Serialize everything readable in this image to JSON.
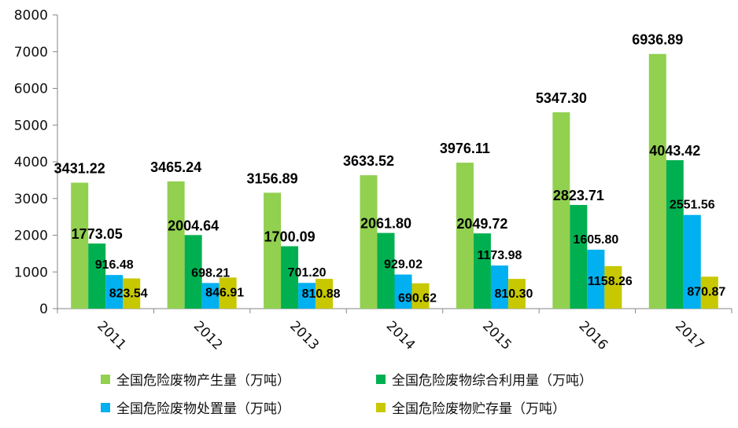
{
  "chart_data": {
    "type": "bar",
    "title": "",
    "xlabel": "",
    "ylabel": "",
    "categories": [
      "2011",
      "2012",
      "2013",
      "2014",
      "2015",
      "2016",
      "2017"
    ],
    "ylim": [
      0,
      8000
    ],
    "yticks": [
      "0",
      "1000",
      "2000",
      "3000",
      "4000",
      "5000",
      "6000",
      "7000",
      "8000"
    ],
    "grid": false,
    "legend_position": "bottom",
    "series": [
      {
        "name": "全国危险废物产生量（万吨）",
        "color": "#92d050",
        "values": [
          3431.22,
          3465.24,
          3156.89,
          3633.52,
          3976.11,
          5347.3,
          6936.89
        ],
        "labels": [
          "3431.22",
          "3465.24",
          "3156.89",
          "3633.52",
          "3976.11",
          "5347.30",
          "6936.89"
        ]
      },
      {
        "name": "全国危险废物综合利用量（万吨）",
        "color": "#00b050",
        "values": [
          1773.05,
          2004.64,
          1700.09,
          2061.8,
          2049.72,
          2823.71,
          4043.42
        ],
        "labels": [
          "1773.05",
          "2004.64",
          "1700.09",
          "2061.80",
          "2049.72",
          "2823.71",
          "4043.42"
        ]
      },
      {
        "name": "全国危险废物处置量（万吨）",
        "color": "#00b0f0",
        "values": [
          916.48,
          698.21,
          701.2,
          929.02,
          1173.98,
          1605.8,
          2551.56
        ],
        "labels": [
          "916.48",
          "698.21",
          "701.20",
          "929.02",
          "1173.98",
          "1605.80",
          "2551.56"
        ]
      },
      {
        "name": "全国危险废物贮存量（万吨）",
        "color": "#c8c800",
        "values": [
          823.54,
          846.91,
          810.88,
          690.62,
          810.3,
          1158.26,
          870.87
        ],
        "labels": [
          "823.54",
          "846.91",
          "810.88",
          "690.62",
          "810.30",
          "1158.26",
          "870.87"
        ]
      }
    ]
  }
}
